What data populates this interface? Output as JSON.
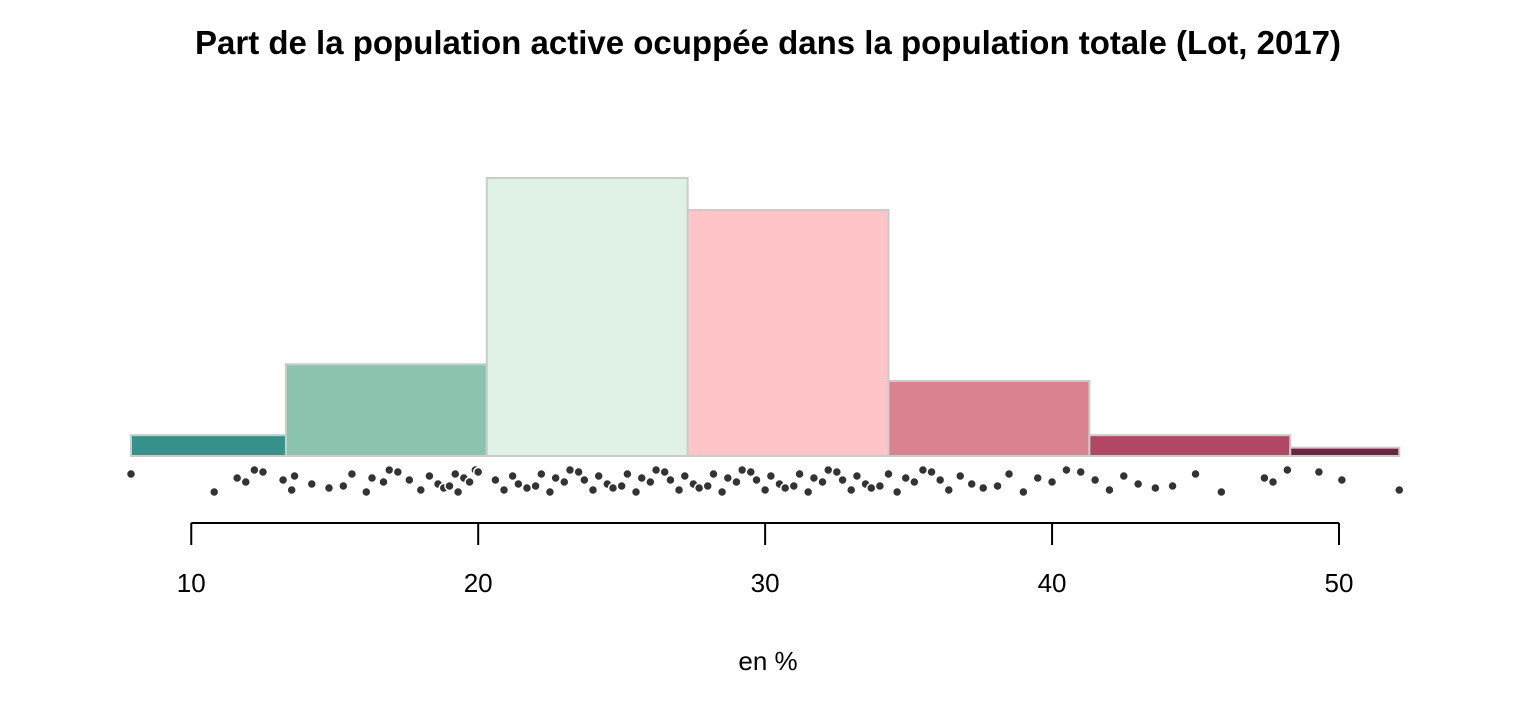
{
  "chart_data": {
    "type": "bar",
    "title": "Part de la population active ocuppée dans la population totale (Lot, 2017)",
    "xlabel": "en %",
    "ylabel": "",
    "xlim": [
      7.9,
      52.3
    ],
    "x_ticks": [
      10,
      20,
      30,
      40,
      50
    ],
    "x_tick_labels": [
      "10",
      "20",
      "30",
      "40",
      "50"
    ],
    "bins": [
      {
        "from": 7.9,
        "to": 13.3,
        "height": 0.075,
        "color": "#35918a"
      },
      {
        "from": 13.3,
        "to": 20.3,
        "height": 0.33,
        "color": "#8cc3af"
      },
      {
        "from": 20.3,
        "to": 27.3,
        "height": 1.0,
        "color": "#e0f1e6"
      },
      {
        "from": 27.3,
        "to": 34.3,
        "height": 0.885,
        "color": "#fec4c7"
      },
      {
        "from": 34.3,
        "to": 41.3,
        "height": 0.27,
        "color": "#db8290"
      },
      {
        "from": 41.3,
        "to": 48.3,
        "height": 0.075,
        "color": "#b04865"
      },
      {
        "from": 48.3,
        "to": 52.1,
        "height": 0.03,
        "color": "#6e2440"
      }
    ],
    "grid": false,
    "legend": "none",
    "points_color": "#333333",
    "points": [
      7.9,
      10.8,
      11.6,
      11.9,
      12.2,
      12.5,
      13.2,
      13.5,
      13.6,
      14.2,
      14.8,
      15.3,
      15.6,
      16.1,
      16.3,
      16.7,
      16.9,
      17.2,
      17.6,
      18.0,
      18.3,
      18.6,
      18.8,
      19.0,
      19.2,
      19.3,
      19.5,
      19.7,
      19.9,
      20.0,
      20.6,
      20.9,
      21.2,
      21.4,
      21.7,
      22.0,
      22.2,
      22.5,
      22.7,
      23.0,
      23.2,
      23.5,
      23.7,
      24.0,
      24.2,
      24.5,
      24.7,
      25.0,
      25.2,
      25.5,
      25.7,
      26.0,
      26.2,
      26.5,
      26.7,
      27.0,
      27.2,
      27.5,
      27.7,
      28.0,
      28.2,
      28.5,
      28.7,
      29.0,
      29.2,
      29.5,
      29.7,
      30.0,
      30.2,
      30.5,
      30.7,
      31.0,
      31.2,
      31.5,
      31.7,
      32.0,
      32.2,
      32.5,
      32.7,
      33.0,
      33.2,
      33.5,
      33.7,
      34.0,
      34.3,
      34.6,
      34.9,
      35.2,
      35.5,
      35.8,
      36.1,
      36.4,
      36.8,
      37.2,
      37.6,
      38.1,
      38.5,
      39.0,
      39.5,
      40.0,
      40.5,
      41.0,
      41.5,
      42.0,
      42.5,
      43.0,
      43.6,
      44.2,
      45.0,
      45.9,
      47.4,
      47.7,
      48.2,
      49.3,
      50.1,
      52.1
    ]
  }
}
